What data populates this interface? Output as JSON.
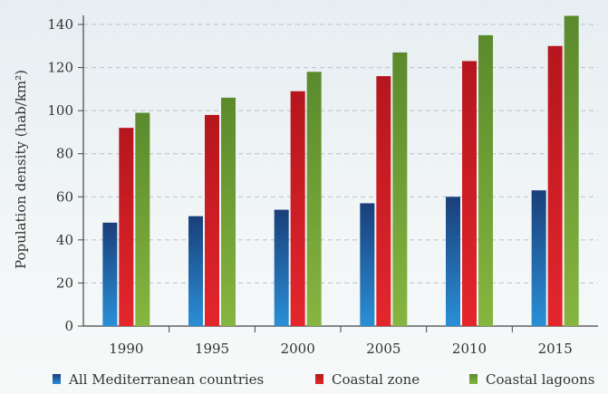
{
  "chart_data": {
    "type": "bar",
    "categories": [
      "1990",
      "1995",
      "2000",
      "2005",
      "2010",
      "2015"
    ],
    "series": [
      {
        "name": "All Mediterranean countries",
        "values": [
          48,
          51,
          54,
          57,
          60,
          63
        ],
        "color": "#1f5fa8"
      },
      {
        "name": "Coastal zone",
        "values": [
          92,
          98,
          109,
          116,
          123,
          130
        ],
        "color": "#cf2027"
      },
      {
        "name": "Coastal lagoons",
        "values": [
          99,
          106,
          118,
          127,
          135,
          144
        ],
        "color": "#6f9a36"
      }
    ],
    "ylabel": "Population density (hab/km²)",
    "ylim": [
      0,
      140
    ],
    "yticks": [
      0,
      20,
      40,
      60,
      80,
      100,
      120,
      140
    ],
    "grid": true,
    "legend_position": "bottom"
  }
}
